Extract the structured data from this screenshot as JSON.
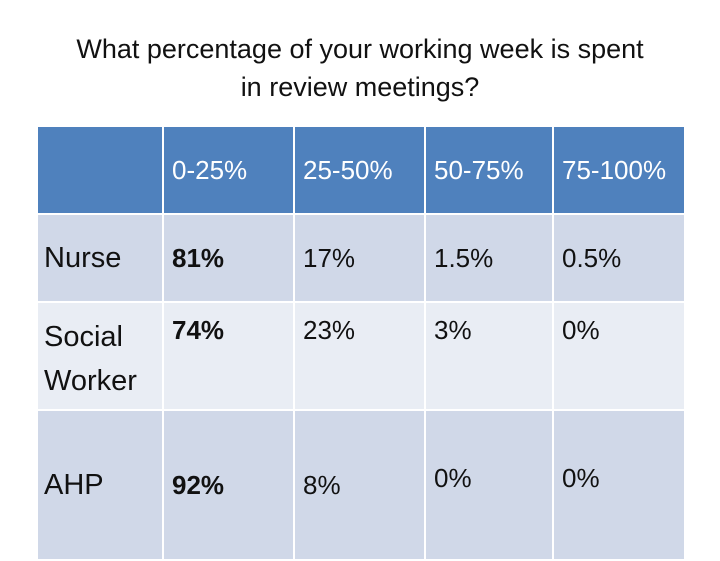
{
  "title": {
    "line1": "What percentage of your working week is spent",
    "line2": "in review meetings?"
  },
  "table": {
    "headers": [
      "",
      "0-25%",
      "25-50%",
      "50-75%",
      "75-100%"
    ],
    "rows": [
      {
        "label": "Nurse",
        "values": [
          "81%",
          "17%",
          "1.5%",
          "0.5%"
        ]
      },
      {
        "label_line1": "Social",
        "label_line2": "Worker",
        "values": [
          "74%",
          "23%",
          "3%",
          "0%"
        ]
      },
      {
        "label": "AHP",
        "values": [
          "92%",
          "8%",
          "0%",
          "0%"
        ]
      }
    ]
  },
  "colors": {
    "header": "#4f81bd",
    "row_dark": "#d0d8e8",
    "row_light": "#e9edf4"
  }
}
